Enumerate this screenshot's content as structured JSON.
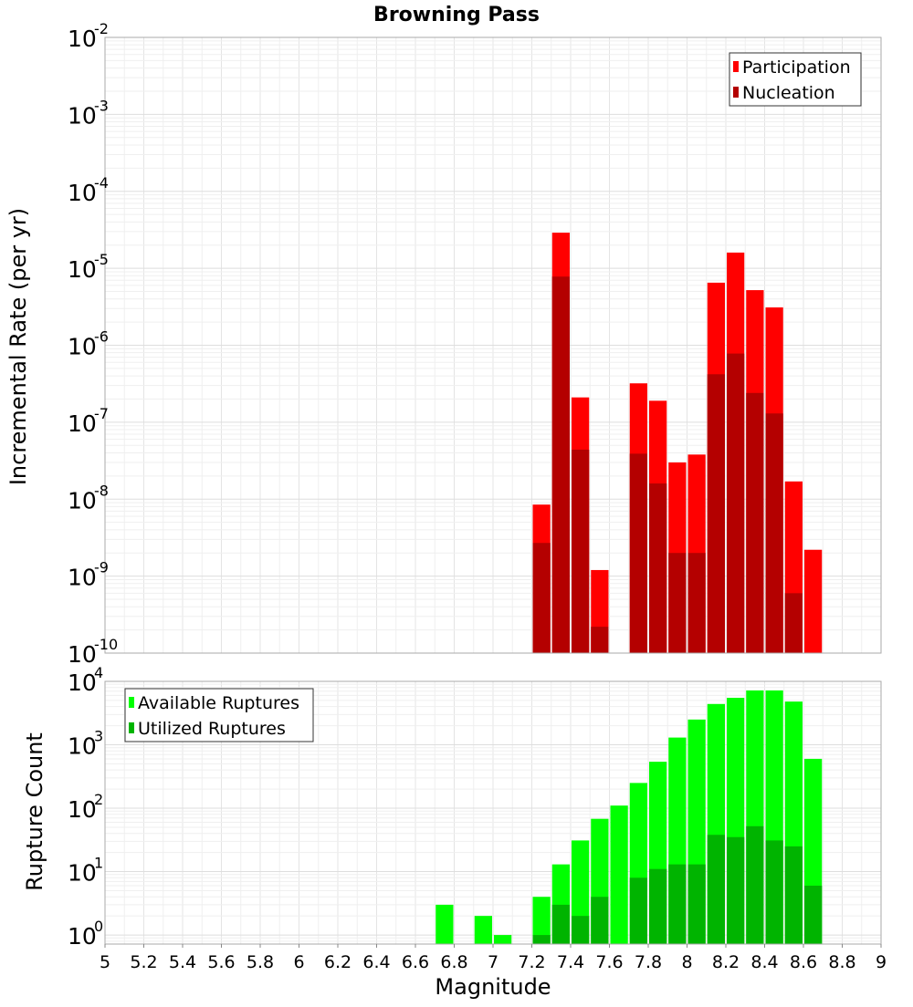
{
  "chart_data": [
    {
      "type": "bar",
      "title": "Browning Pass",
      "xlabel": "",
      "ylabel": "Incremental Rate (per yr)",
      "x_range": [
        5,
        9
      ],
      "y_scale": "log",
      "y_range": [
        1e-10,
        0.01
      ],
      "y_ticks": [
        {
          "base": "10",
          "exp": "-10"
        },
        {
          "base": "10",
          "exp": "-9"
        },
        {
          "base": "10",
          "exp": "-8"
        },
        {
          "base": "10",
          "exp": "-7"
        },
        {
          "base": "10",
          "exp": "-6"
        },
        {
          "base": "10",
          "exp": "-5"
        },
        {
          "base": "10",
          "exp": "-4"
        },
        {
          "base": "10",
          "exp": "-3"
        },
        {
          "base": "10",
          "exp": "-2"
        }
      ],
      "grid": true,
      "legend_position": "top-right",
      "bar_width": 0.1,
      "series": [
        {
          "name": "Participation",
          "color": "#ff0000",
          "points": [
            {
              "x": 7.25,
              "y": 8.5e-09
            },
            {
              "x": 7.35,
              "y": 2.9e-05
            },
            {
              "x": 7.45,
              "y": 2.1e-07
            },
            {
              "x": 7.55,
              "y": 1.2e-09
            },
            {
              "x": 7.75,
              "y": 3.2e-07
            },
            {
              "x": 7.85,
              "y": 1.9e-07
            },
            {
              "x": 7.95,
              "y": 3e-08
            },
            {
              "x": 8.05,
              "y": 3.8e-08
            },
            {
              "x": 8.15,
              "y": 6.5e-06
            },
            {
              "x": 8.25,
              "y": 1.6e-05
            },
            {
              "x": 8.35,
              "y": 5.2e-06
            },
            {
              "x": 8.45,
              "y": 3.1e-06
            },
            {
              "x": 8.55,
              "y": 1.7e-08
            },
            {
              "x": 8.65,
              "y": 2.2e-09
            }
          ]
        },
        {
          "name": "Nucleation",
          "color": "#b40000",
          "points": [
            {
              "x": 7.25,
              "y": 2.7e-09
            },
            {
              "x": 7.35,
              "y": 7.8e-06
            },
            {
              "x": 7.45,
              "y": 4.4e-08
            },
            {
              "x": 7.55,
              "y": 2.2e-10
            },
            {
              "x": 7.75,
              "y": 3.9e-08
            },
            {
              "x": 7.85,
              "y": 1.6e-08
            },
            {
              "x": 7.95,
              "y": 2e-09
            },
            {
              "x": 8.05,
              "y": 2e-09
            },
            {
              "x": 8.15,
              "y": 4.2e-07
            },
            {
              "x": 8.25,
              "y": 7.8e-07
            },
            {
              "x": 8.35,
              "y": 2.4e-07
            },
            {
              "x": 8.45,
              "y": 1.3e-07
            },
            {
              "x": 8.55,
              "y": 6e-10
            }
          ]
        }
      ]
    },
    {
      "type": "bar",
      "title": "",
      "xlabel": "Magnitude",
      "ylabel": "Rupture Count",
      "x_range": [
        5,
        9
      ],
      "x_ticks": [
        "5",
        "5.2",
        "5.4",
        "5.6",
        "5.8",
        "6",
        "6.2",
        "6.4",
        "6.6",
        "6.8",
        "7",
        "7.2",
        "7.4",
        "7.6",
        "7.8",
        "8",
        "8.2",
        "8.4",
        "8.6",
        "8.8",
        "9"
      ],
      "y_scale": "log",
      "y_range": [
        0.72,
        10000
      ],
      "y_ticks": [
        {
          "base": "10",
          "exp": "0"
        },
        {
          "base": "10",
          "exp": "1"
        },
        {
          "base": "10",
          "exp": "2"
        },
        {
          "base": "10",
          "exp": "3"
        },
        {
          "base": "10",
          "exp": "4"
        }
      ],
      "grid": true,
      "legend_position": "top-left",
      "bar_width": 0.1,
      "series": [
        {
          "name": "Available Ruptures",
          "color": "#00ff00",
          "points": [
            {
              "x": 6.75,
              "y": 3
            },
            {
              "x": 6.95,
              "y": 2
            },
            {
              "x": 7.05,
              "y": 1
            },
            {
              "x": 7.25,
              "y": 4
            },
            {
              "x": 7.35,
              "y": 13
            },
            {
              "x": 7.45,
              "y": 31
            },
            {
              "x": 7.55,
              "y": 68
            },
            {
              "x": 7.65,
              "y": 110
            },
            {
              "x": 7.75,
              "y": 250
            },
            {
              "x": 7.85,
              "y": 540
            },
            {
              "x": 7.95,
              "y": 1300
            },
            {
              "x": 8.05,
              "y": 2500
            },
            {
              "x": 8.15,
              "y": 4400
            },
            {
              "x": 8.25,
              "y": 5500
            },
            {
              "x": 8.35,
              "y": 7200
            },
            {
              "x": 8.45,
              "y": 7200
            },
            {
              "x": 8.55,
              "y": 4800
            },
            {
              "x": 8.65,
              "y": 600
            }
          ]
        },
        {
          "name": "Utilized Ruptures",
          "color": "#00b400",
          "points": [
            {
              "x": 7.25,
              "y": 1
            },
            {
              "x": 7.35,
              "y": 3
            },
            {
              "x": 7.45,
              "y": 2
            },
            {
              "x": 7.55,
              "y": 4
            },
            {
              "x": 7.75,
              "y": 8
            },
            {
              "x": 7.85,
              "y": 11
            },
            {
              "x": 7.95,
              "y": 13
            },
            {
              "x": 8.05,
              "y": 13
            },
            {
              "x": 8.15,
              "y": 38
            },
            {
              "x": 8.25,
              "y": 35
            },
            {
              "x": 8.35,
              "y": 52
            },
            {
              "x": 8.45,
              "y": 31
            },
            {
              "x": 8.55,
              "y": 25
            },
            {
              "x": 8.65,
              "y": 6
            }
          ]
        }
      ]
    }
  ]
}
